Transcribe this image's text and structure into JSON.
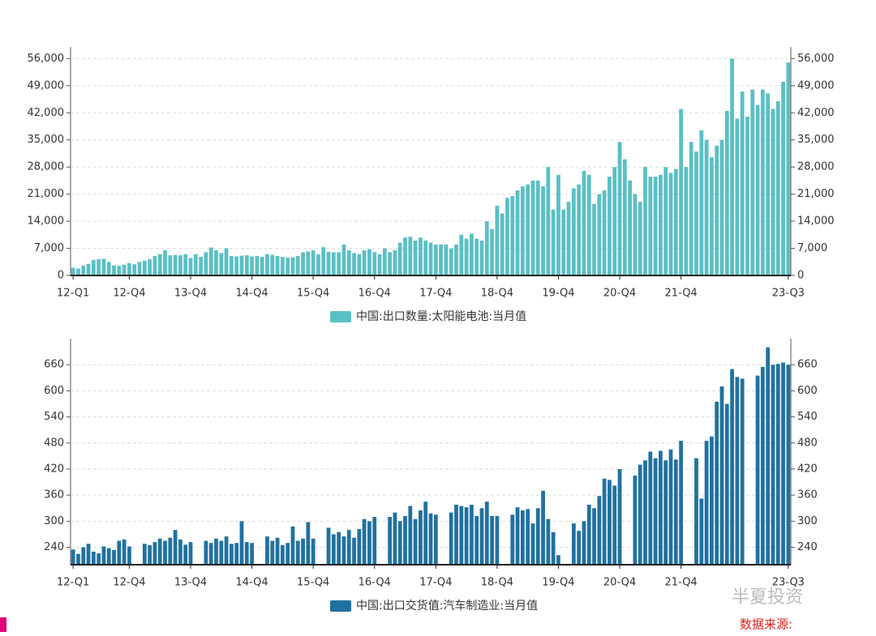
{
  "chart_data": [
    {
      "type": "bar",
      "categories": [
        "12-Q1",
        null,
        null,
        null,
        null,
        null,
        null,
        null,
        null,
        null,
        null,
        "12-Q4",
        null,
        null,
        null,
        null,
        null,
        null,
        null,
        null,
        null,
        null,
        null,
        "13-Q4",
        null,
        null,
        null,
        null,
        null,
        null,
        null,
        null,
        null,
        null,
        null,
        "14-Q4",
        null,
        null,
        null,
        null,
        null,
        null,
        null,
        null,
        null,
        null,
        null,
        "15-Q4",
        null,
        null,
        null,
        null,
        null,
        null,
        null,
        null,
        null,
        null,
        null,
        "16-Q4",
        null,
        null,
        null,
        null,
        null,
        null,
        null,
        null,
        null,
        null,
        null,
        "17-Q4",
        null,
        null,
        null,
        null,
        null,
        null,
        null,
        null,
        null,
        null,
        null,
        "18-Q4",
        null,
        null,
        null,
        null,
        null,
        null,
        null,
        null,
        null,
        null,
        null,
        "19-Q4",
        null,
        null,
        null,
        null,
        null,
        null,
        null,
        null,
        null,
        null,
        null,
        "20-Q4",
        null,
        null,
        null,
        null,
        null,
        null,
        null,
        null,
        null,
        null,
        null,
        "21-Q4",
        null,
        null,
        null,
        null,
        null,
        null,
        null,
        null,
        null,
        null,
        null,
        null,
        null,
        null,
        null,
        null,
        null,
        null,
        null,
        null,
        "23-Q3"
      ],
      "series": [
        {
          "name": "中国:出口数量:太阳能电池:当月值",
          "color": "#5bbfc4",
          "values": [
            2000,
            1800,
            2500,
            3000,
            4000,
            4200,
            4300,
            3500,
            2600,
            2500,
            2800,
            3200,
            2900,
            3500,
            3800,
            4200,
            5000,
            5500,
            6500,
            5200,
            5300,
            5200,
            5500,
            4500,
            5500,
            4800,
            6000,
            7200,
            6500,
            5800,
            7000,
            5000,
            4900,
            5100,
            5200,
            4900,
            5000,
            4800,
            5500,
            5300,
            5000,
            4800,
            4600,
            4700,
            5000,
            6000,
            6200,
            6500,
            5500,
            7300,
            6100,
            6000,
            6000,
            8000,
            6500,
            5800,
            5500,
            6500,
            6800,
            6000,
            5500,
            7000,
            6000,
            6500,
            8500,
            9800,
            10000,
            9000,
            9800,
            9000,
            8500,
            8000,
            8000,
            8000,
            7000,
            8000,
            10500,
            9500,
            10800,
            9500,
            9000,
            14000,
            12000,
            18000,
            16000,
            20000,
            20500,
            22000,
            23000,
            23500,
            24500,
            24500,
            23000,
            28000,
            17000,
            26000,
            17000,
            19000,
            22500,
            23500,
            27000,
            26000,
            18500,
            21000,
            22000,
            25500,
            28000,
            34500,
            30000,
            24500,
            21000,
            19000,
            28000,
            25500,
            25500,
            26000,
            28000,
            26500,
            27500,
            43000,
            28000,
            34500,
            32000,
            37500,
            35000,
            30500,
            33500,
            35000,
            42500,
            56000,
            40500,
            47500,
            41000,
            48000,
            44000,
            48000,
            47000,
            43000,
            45000,
            50000,
            55000
          ]
        }
      ],
      "ylim": [
        0,
        59000
      ],
      "yticks": [
        0,
        {
          "value": 7000,
          "label": "7,000"
        },
        {
          "value": 14000,
          "label": "14,000"
        },
        {
          "value": 21000,
          "label": "21,000"
        },
        {
          "value": 28000,
          "label": "28,000"
        },
        {
          "value": 35000,
          "label": "35,000"
        },
        {
          "value": 42000,
          "label": "42,000"
        },
        {
          "value": 49000,
          "label": "49,000"
        },
        {
          "value": 56000,
          "label": "56,000"
        }
      ],
      "grid": true
    },
    {
      "type": "bar",
      "categories": [
        "12-Q1",
        null,
        null,
        null,
        null,
        null,
        null,
        null,
        null,
        null,
        null,
        "12-Q4",
        null,
        null,
        null,
        null,
        null,
        null,
        null,
        null,
        null,
        null,
        null,
        "13-Q4",
        null,
        null,
        null,
        null,
        null,
        null,
        null,
        null,
        null,
        null,
        null,
        "14-Q4",
        null,
        null,
        null,
        null,
        null,
        null,
        null,
        null,
        null,
        null,
        null,
        "15-Q4",
        null,
        null,
        null,
        null,
        null,
        null,
        null,
        null,
        null,
        null,
        null,
        "16-Q4",
        null,
        null,
        null,
        null,
        null,
        null,
        null,
        null,
        null,
        null,
        null,
        "17-Q4",
        null,
        null,
        null,
        null,
        null,
        null,
        null,
        null,
        null,
        null,
        null,
        "18-Q4",
        null,
        null,
        null,
        null,
        null,
        null,
        null,
        null,
        null,
        null,
        null,
        "19-Q4",
        null,
        null,
        null,
        null,
        null,
        null,
        null,
        null,
        null,
        null,
        null,
        "20-Q4",
        null,
        null,
        null,
        null,
        null,
        null,
        null,
        null,
        null,
        null,
        null,
        "21-Q4",
        null,
        null,
        null,
        null,
        null,
        null,
        null,
        null,
        null,
        null,
        null,
        null,
        null,
        null,
        null,
        null,
        null,
        null,
        null,
        null,
        "23-Q3"
      ],
      "series": [
        {
          "name": "中国:出口交货值:汽车制造业:当月值",
          "color": "#21719f",
          "values": [
            235,
            225,
            240,
            248,
            230,
            226,
            242,
            238,
            234,
            255,
            258,
            242,
            null,
            null,
            248,
            245,
            252,
            260,
            255,
            262,
            280,
            258,
            246,
            252,
            null,
            null,
            255,
            250,
            260,
            255,
            265,
            248,
            250,
            300,
            252,
            250,
            null,
            null,
            265,
            255,
            262,
            245,
            250,
            288,
            255,
            260,
            298,
            260,
            null,
            null,
            285,
            270,
            275,
            265,
            280,
            262,
            282,
            305,
            300,
            310,
            null,
            null,
            310,
            320,
            300,
            312,
            335,
            305,
            325,
            345,
            318,
            315,
            null,
            null,
            320,
            338,
            335,
            332,
            338,
            312,
            330,
            345,
            312,
            312,
            null,
            null,
            315,
            332,
            325,
            328,
            295,
            330,
            370,
            305,
            275,
            222,
            null,
            null,
            295,
            278,
            300,
            338,
            330,
            358,
            398,
            395,
            382,
            420,
            null,
            null,
            405,
            430,
            440,
            460,
            445,
            462,
            440,
            465,
            442,
            485,
            null,
            null,
            445,
            352,
            485,
            495,
            575,
            610,
            570,
            650,
            632,
            628,
            null,
            null,
            635,
            655,
            700,
            660,
            662,
            665,
            660
          ]
        }
      ],
      "ylim": [
        200,
        720
      ],
      "yticks": [
        240,
        300,
        360,
        420,
        480,
        540,
        600,
        660
      ],
      "grid": true
    }
  ],
  "watermark": "半夏投资",
  "source": "数据来源:"
}
